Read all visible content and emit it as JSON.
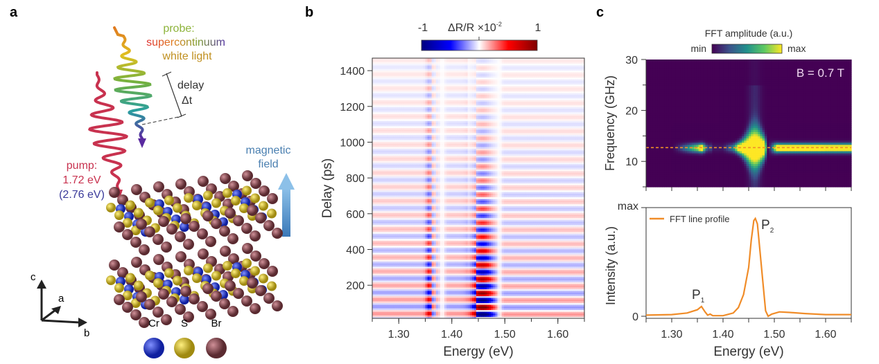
{
  "panel_a": {
    "label": "a",
    "probe_title": "probe:",
    "probe_line1": "supercontinuum",
    "probe_line2": "white light",
    "delay_label": "delay",
    "delay_symbol": "Δt",
    "pump_title": "pump:",
    "pump_energy1": "1.72 eV",
    "pump_energy2": "(2.76 eV)",
    "field_line1": "magnetic",
    "field_line2": "field",
    "axes": {
      "c": "c",
      "a": "a",
      "b": "b"
    },
    "legend": [
      {
        "label": "Cr",
        "color": "#1f2fd0"
      },
      {
        "label": "S",
        "color": "#d4c22a"
      },
      {
        "label": "Br",
        "color": "#8a4a52"
      }
    ],
    "colors": {
      "pump": "#c8324f",
      "pump2": "#3a3a9a",
      "field": "#4a7fb0",
      "probe": "#8db33a"
    }
  },
  "chart_data": [
    {
      "panel": "b",
      "type": "heatmap",
      "xlabel": "Energy (eV)",
      "ylabel": "Delay (ps)",
      "xlim": [
        1.25,
        1.65
      ],
      "ylim": [
        15,
        1470
      ],
      "xticks": [
        "1.30",
        "1.40",
        "1.50",
        "1.60"
      ],
      "yticks": [
        "200",
        "400",
        "600",
        "800",
        "1000",
        "1200",
        "1400"
      ],
      "colorbar": {
        "title": "ΔR/R ×10",
        "exponent": "-2",
        "min_label": "-1",
        "max_label": "1",
        "range": [
          -1,
          1
        ],
        "colormap": "seismic"
      }
    },
    {
      "panel": "c-top",
      "type": "heatmap",
      "ylabel": "Frequency (GHz)",
      "xlim": [
        1.25,
        1.65
      ],
      "ylim": [
        5,
        30
      ],
      "yticks": [
        "10",
        "20",
        "30"
      ],
      "annotation": "B = 0.7 T",
      "dashed_line_frequency": 12.7,
      "colorbar": {
        "title": "FFT amplitude (a.u.)",
        "min_label": "min",
        "max_label": "max",
        "colormap": "viridis"
      }
    },
    {
      "panel": "c-bottom",
      "type": "line",
      "xlabel": "Energy (eV)",
      "ylabel": "Intensity (a.u.)",
      "xlim": [
        1.25,
        1.65
      ],
      "ylim": [
        0,
        1
      ],
      "xticks": [
        "1.30",
        "1.40",
        "1.50",
        "1.60"
      ],
      "yticks": [
        "0",
        "max"
      ],
      "series": [
        {
          "name": "FFT line profile",
          "color": "#f08c28",
          "x": [
            1.25,
            1.3,
            1.33,
            1.35,
            1.358,
            1.365,
            1.37,
            1.375,
            1.38,
            1.4,
            1.42,
            1.43,
            1.44,
            1.45,
            1.455,
            1.46,
            1.463,
            1.467,
            1.472,
            1.478,
            1.483,
            1.488,
            1.495,
            1.51,
            1.53,
            1.56,
            1.6,
            1.65
          ],
          "y": [
            0.01,
            0.015,
            0.03,
            0.06,
            0.09,
            0.04,
            0.01,
            0.02,
            0.005,
            0.005,
            0.03,
            0.08,
            0.2,
            0.45,
            0.7,
            0.88,
            0.9,
            0.85,
            0.6,
            0.3,
            0.05,
            0.0,
            0.02,
            0.04,
            0.035,
            0.025,
            0.015,
            0.015
          ]
        }
      ],
      "annotations": [
        {
          "text": "P",
          "sub": "1"
        },
        {
          "text": "P",
          "sub": "2"
        }
      ]
    }
  ],
  "panel_labels": {
    "b": "b",
    "c": "c"
  }
}
